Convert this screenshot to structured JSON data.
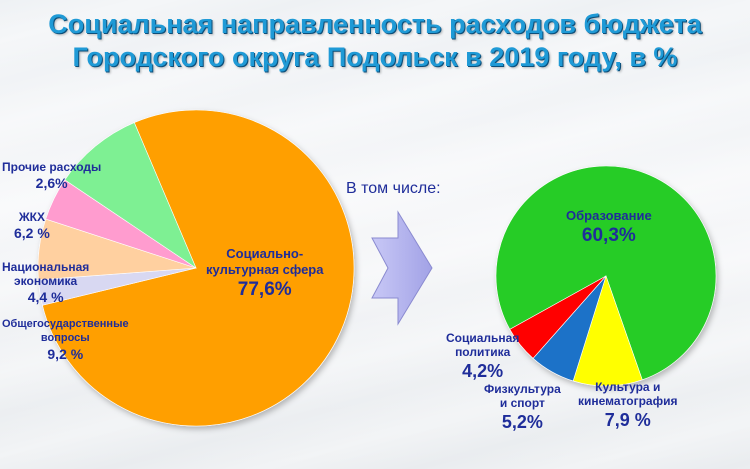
{
  "title_line1": "Социальная направленность расходов бюджета",
  "title_line2": "Городского округа Подольск в 2019 году, в %",
  "subheading": "В том числе:",
  "colors": {
    "title": "#1f9ad6",
    "labels": "#1f2d9a",
    "arrow": "#b4b4ee"
  },
  "chart_data": [
    {
      "type": "pie",
      "slices": [
        {
          "name": "Социально-культурная сфера",
          "value": 77.6,
          "label": "77,6%",
          "color": "#ff9f00"
        },
        {
          "name": "Прочие расходы",
          "value": 2.6,
          "label": "2,6%",
          "color": "#d8d8f2"
        },
        {
          "name": "ЖКХ",
          "value": 6.2,
          "label": "6,2 %",
          "color": "#ffd0a0"
        },
        {
          "name": "Национальная экономика",
          "value": 4.4,
          "label": "4,4 %",
          "color": "#ff9ccf"
        },
        {
          "name": "Общегосударственные вопросы",
          "value": 9.2,
          "label": "9,2 %",
          "color": "#7ef093"
        }
      ]
    },
    {
      "type": "pie",
      "slices": [
        {
          "name": "Образование",
          "value": 60.3,
          "label": "60,3%",
          "color": "#26cc26"
        },
        {
          "name": "Культура и кинематография",
          "value": 7.9,
          "label": "7,9 %",
          "color": "#ffff00"
        },
        {
          "name": "Физкультура и спорт",
          "value": 5.2,
          "label": "5,2%",
          "color": "#1e72c8"
        },
        {
          "name": "Социальная политика",
          "value": 4.2,
          "label": "4,2%",
          "color": "#ff0000"
        }
      ]
    }
  ],
  "labels": {
    "left": {
      "socio_name": "Социально-культурная сфера",
      "socio_name_l1": "Социально-",
      "socio_name_l2": "культурная сфера",
      "socio_val": "77,6%",
      "other_name": "Прочие расходы",
      "other_val": "2,6%",
      "zhkh_name": "ЖКХ",
      "zhkh_val": "6,2 %",
      "econ_name_l1": "Национальная",
      "econ_name_l2": "экономика",
      "econ_val": "4,4 %",
      "gov_name_l1": "Общегосударственные",
      "gov_name_l2": "вопросы",
      "gov_val": "9,2 %"
    },
    "right": {
      "edu_name": "Образование",
      "edu_val": "60,3%",
      "social_name_l1": "Социальная",
      "social_name_l2": "политика",
      "social_val": "4,2%",
      "sport_name_l1": "Физкультура",
      "sport_name_l2": "и спорт",
      "sport_val": "5,2%",
      "culture_name_l1": "Культура и",
      "culture_name_l2": "кинематография",
      "culture_val": "7,9 %"
    }
  }
}
